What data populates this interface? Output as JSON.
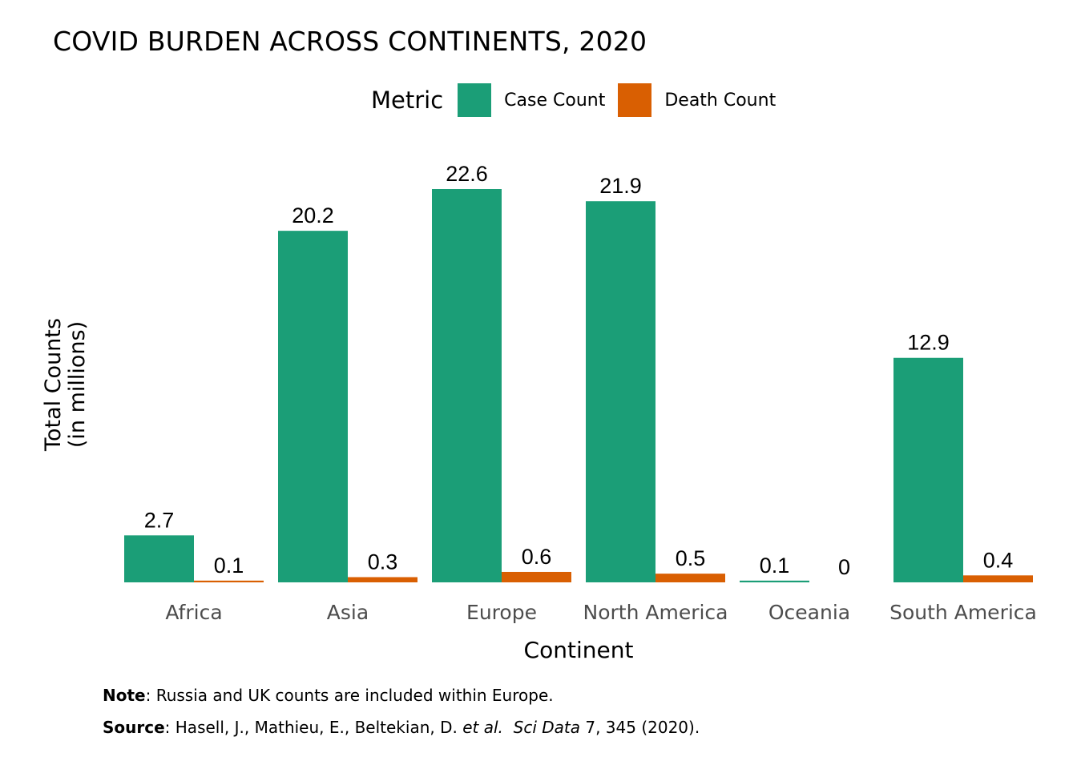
{
  "chart_data": {
    "type": "bar",
    "title": "COVID BURDEN ACROSS CONTINENTS, 2020",
    "xlabel": "Continent",
    "ylabel_line1": "Total Counts",
    "ylabel_line2": "(in millions)",
    "legend_title": "Metric",
    "legend_position": "top",
    "categories": [
      "Africa",
      "Asia",
      "Europe",
      "North America",
      "Oceania",
      "South America"
    ],
    "series": [
      {
        "name": "Case Count",
        "color": "#1b9e77",
        "values": [
          2.7,
          20.2,
          22.6,
          21.9,
          0.1,
          12.9
        ],
        "labels": [
          "2.7",
          "20.2",
          "22.6",
          "21.9",
          "0.1",
          "12.9"
        ]
      },
      {
        "name": "Death Count",
        "color": "#d95f02",
        "values": [
          0.1,
          0.3,
          0.6,
          0.5,
          0.0,
          0.4
        ],
        "labels": [
          "0.1",
          "0.3",
          "0.6",
          "0.5",
          "0",
          "0.4"
        ]
      }
    ],
    "ylim": [
      0,
      22.6
    ],
    "grid": false
  },
  "notes": {
    "note_bold": "Note",
    "note_text": ": Russia and UK counts are included within Europe.",
    "source_bold": "Source",
    "source_text_1": ": Hasell, J., Mathieu, E., Beltekian, D. ",
    "source_italic_1": "et al.",
    "source_text_2": "  ",
    "source_italic_2": "Sci Data",
    "source_text_3": " 7, 345 (2020)."
  }
}
